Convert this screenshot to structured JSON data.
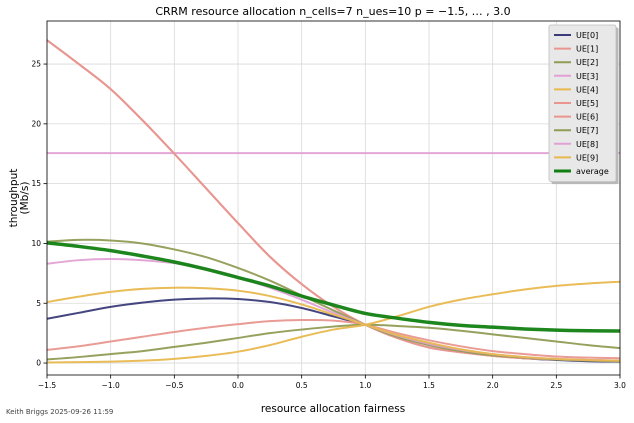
{
  "chart_data": {
    "type": "line",
    "title": "CRRM resource allocation n_cells=7 n_ues=10 p = −1.5, … , 3.0",
    "xlabel": "resource allocation fairness",
    "ylabel_line1": "throughput",
    "ylabel_line2": "(Mb/s)",
    "xlim": [
      -1.5,
      3.0
    ],
    "ylim": [
      -1.0,
      28.6
    ],
    "xticks": [
      -1.5,
      -1.0,
      -0.5,
      0.0,
      0.5,
      1.0,
      1.5,
      2.0,
      2.5,
      3.0
    ],
    "xtick_labels": [
      "−1.5",
      "−1.0",
      "−0.5",
      "0.0",
      "0.5",
      "1.0",
      "1.5",
      "2.0",
      "2.5",
      "3.0"
    ],
    "yticks": [
      0,
      5,
      10,
      15,
      20,
      25
    ],
    "ytick_labels": [
      "0",
      "5",
      "10",
      "15",
      "20",
      "25"
    ],
    "grid": true,
    "legend_position": "top-right",
    "x": [
      -1.5,
      -1.25,
      -1.0,
      -0.75,
      -0.5,
      -0.25,
      0.0,
      0.25,
      0.5,
      0.75,
      1.0,
      1.25,
      1.5,
      1.75,
      2.0,
      2.25,
      2.5,
      2.75,
      3.0
    ],
    "series": [
      {
        "name": "UE[0]",
        "color": "#3b3b79",
        "width": 2,
        "values": [
          3.7,
          4.2,
          4.7,
          5.05,
          5.3,
          5.4,
          5.35,
          5.1,
          4.6,
          3.9,
          3.2,
          2.3,
          1.6,
          1.05,
          0.65,
          0.4,
          0.25,
          0.15,
          0.12
        ]
      },
      {
        "name": "UE[1]",
        "color": "#e8968f",
        "width": 2,
        "values": [
          1.1,
          1.4,
          1.8,
          2.2,
          2.6,
          2.95,
          3.25,
          3.5,
          3.6,
          3.55,
          3.2,
          2.5,
          1.9,
          1.4,
          1.0,
          0.75,
          0.55,
          0.45,
          0.4
        ]
      },
      {
        "name": "UE[2]",
        "color": "#8f9c54",
        "width": 2,
        "values": [
          0.3,
          0.5,
          0.75,
          1.0,
          1.35,
          1.7,
          2.1,
          2.5,
          2.8,
          3.05,
          3.2,
          3.1,
          2.95,
          2.7,
          2.4,
          2.1,
          1.8,
          1.5,
          1.25
        ]
      },
      {
        "name": "UE[3]",
        "color": "#e2a1d4",
        "width": 2,
        "values": [
          17.55,
          17.55,
          17.55,
          17.55,
          17.55,
          17.55,
          17.55,
          17.55,
          17.55,
          17.55,
          17.55,
          17.55,
          17.55,
          17.55,
          17.55,
          17.55,
          17.55,
          17.55,
          17.55
        ]
      },
      {
        "name": "UE[4]",
        "color": "#e8b84e",
        "width": 2,
        "values": [
          0.05,
          0.08,
          0.12,
          0.2,
          0.35,
          0.6,
          0.95,
          1.5,
          2.2,
          2.8,
          3.2,
          3.9,
          4.7,
          5.3,
          5.75,
          6.15,
          6.45,
          6.65,
          6.8
        ]
      },
      {
        "name": "UE[5]",
        "color": "#e8968f",
        "width": 2,
        "values": [
          27.0,
          25.0,
          22.9,
          20.3,
          17.5,
          14.6,
          11.7,
          8.9,
          6.6,
          4.7,
          3.2,
          2.1,
          1.3,
          0.9,
          0.6,
          0.4,
          0.3,
          0.25,
          0.2
        ]
      },
      {
        "name": "UE[6]",
        "color": "#e8968f",
        "width": 2,
        "values": [
          27.0,
          25.0,
          22.9,
          20.3,
          17.5,
          14.6,
          11.7,
          8.9,
          6.6,
          4.7,
          3.2,
          2.1,
          1.3,
          0.9,
          0.6,
          0.4,
          0.3,
          0.25,
          0.2
        ]
      },
      {
        "name": "UE[7]",
        "color": "#8f9c54",
        "width": 2,
        "values": [
          10.15,
          10.3,
          10.25,
          10.0,
          9.5,
          8.85,
          7.95,
          6.9,
          5.65,
          4.4,
          3.2,
          2.2,
          1.5,
          1.0,
          0.65,
          0.45,
          0.3,
          0.2,
          0.15
        ]
      },
      {
        "name": "UE[8]",
        "color": "#e2a1d4",
        "width": 2,
        "values": [
          8.3,
          8.6,
          8.7,
          8.6,
          8.35,
          7.9,
          7.2,
          6.3,
          5.3,
          4.2,
          3.2,
          2.3,
          1.6,
          1.1,
          0.75,
          0.5,
          0.35,
          0.25,
          0.2
        ]
      },
      {
        "name": "UE[9]",
        "color": "#e8b84e",
        "width": 2,
        "values": [
          5.1,
          5.55,
          5.95,
          6.2,
          6.3,
          6.25,
          6.05,
          5.6,
          4.9,
          4.05,
          3.2,
          2.35,
          1.7,
          1.15,
          0.75,
          0.5,
          0.35,
          0.25,
          0.2
        ]
      },
      {
        "name": "average",
        "color": "#118011",
        "width": 3.5,
        "values": [
          10.05,
          9.75,
          9.4,
          8.95,
          8.45,
          7.85,
          7.15,
          6.45,
          5.6,
          4.85,
          4.15,
          3.75,
          3.4,
          3.15,
          3.0,
          2.85,
          2.75,
          2.7,
          2.68
        ]
      }
    ]
  },
  "footer": "Keith Briggs 2025-09-26 11:59"
}
